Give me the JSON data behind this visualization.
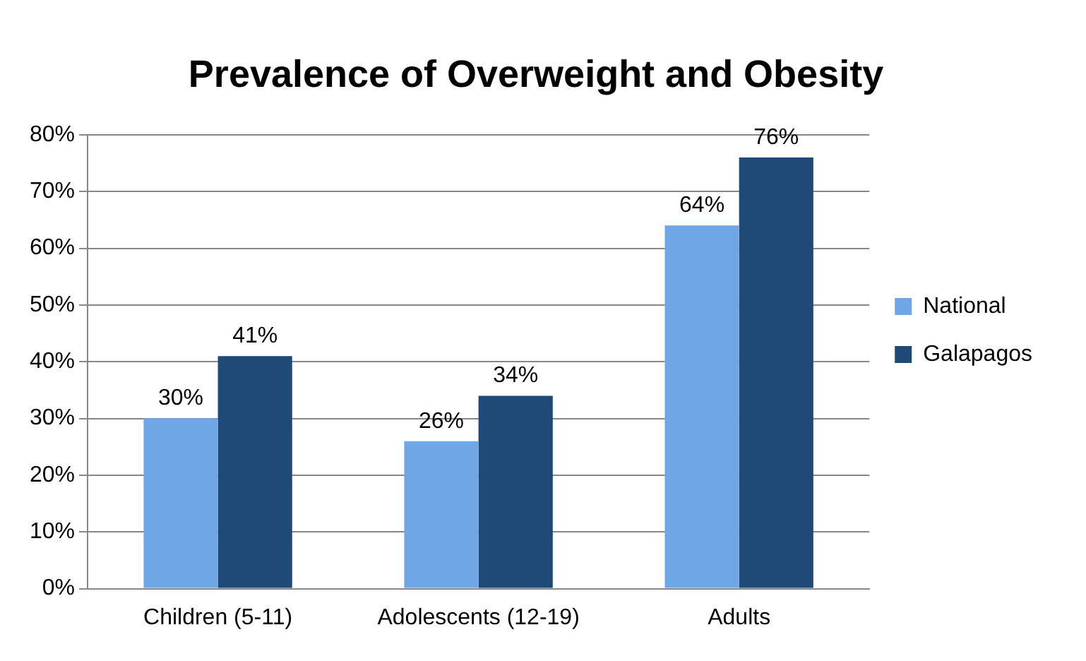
{
  "chart_data": {
    "type": "bar",
    "title": "Prevalence of Overweight and Obesity",
    "categories": [
      "Children (5-11)",
      "Adolescents (12-19)",
      "Adults"
    ],
    "series": [
      {
        "name": "National",
        "color": "#6fa6e6",
        "values": [
          30,
          26,
          64
        ],
        "value_labels": [
          "30%",
          "26%",
          "64%"
        ]
      },
      {
        "name": "Galapagos",
        "color": "#1f4a78",
        "values": [
          41,
          34,
          76
        ],
        "value_labels": [
          "41%",
          "34%",
          "76%"
        ]
      }
    ],
    "ylim": [
      0,
      80
    ],
    "yticks": [
      {
        "value": 0,
        "label": "0%"
      },
      {
        "value": 10,
        "label": "10%"
      },
      {
        "value": 20,
        "label": "20%"
      },
      {
        "value": 30,
        "label": "30%"
      },
      {
        "value": 40,
        "label": "40%"
      },
      {
        "value": 50,
        "label": "50%"
      },
      {
        "value": 60,
        "label": "60%"
      },
      {
        "value": 70,
        "label": "70%"
      },
      {
        "value": 80,
        "label": "80%"
      }
    ],
    "grid": "y",
    "legend": "right"
  }
}
